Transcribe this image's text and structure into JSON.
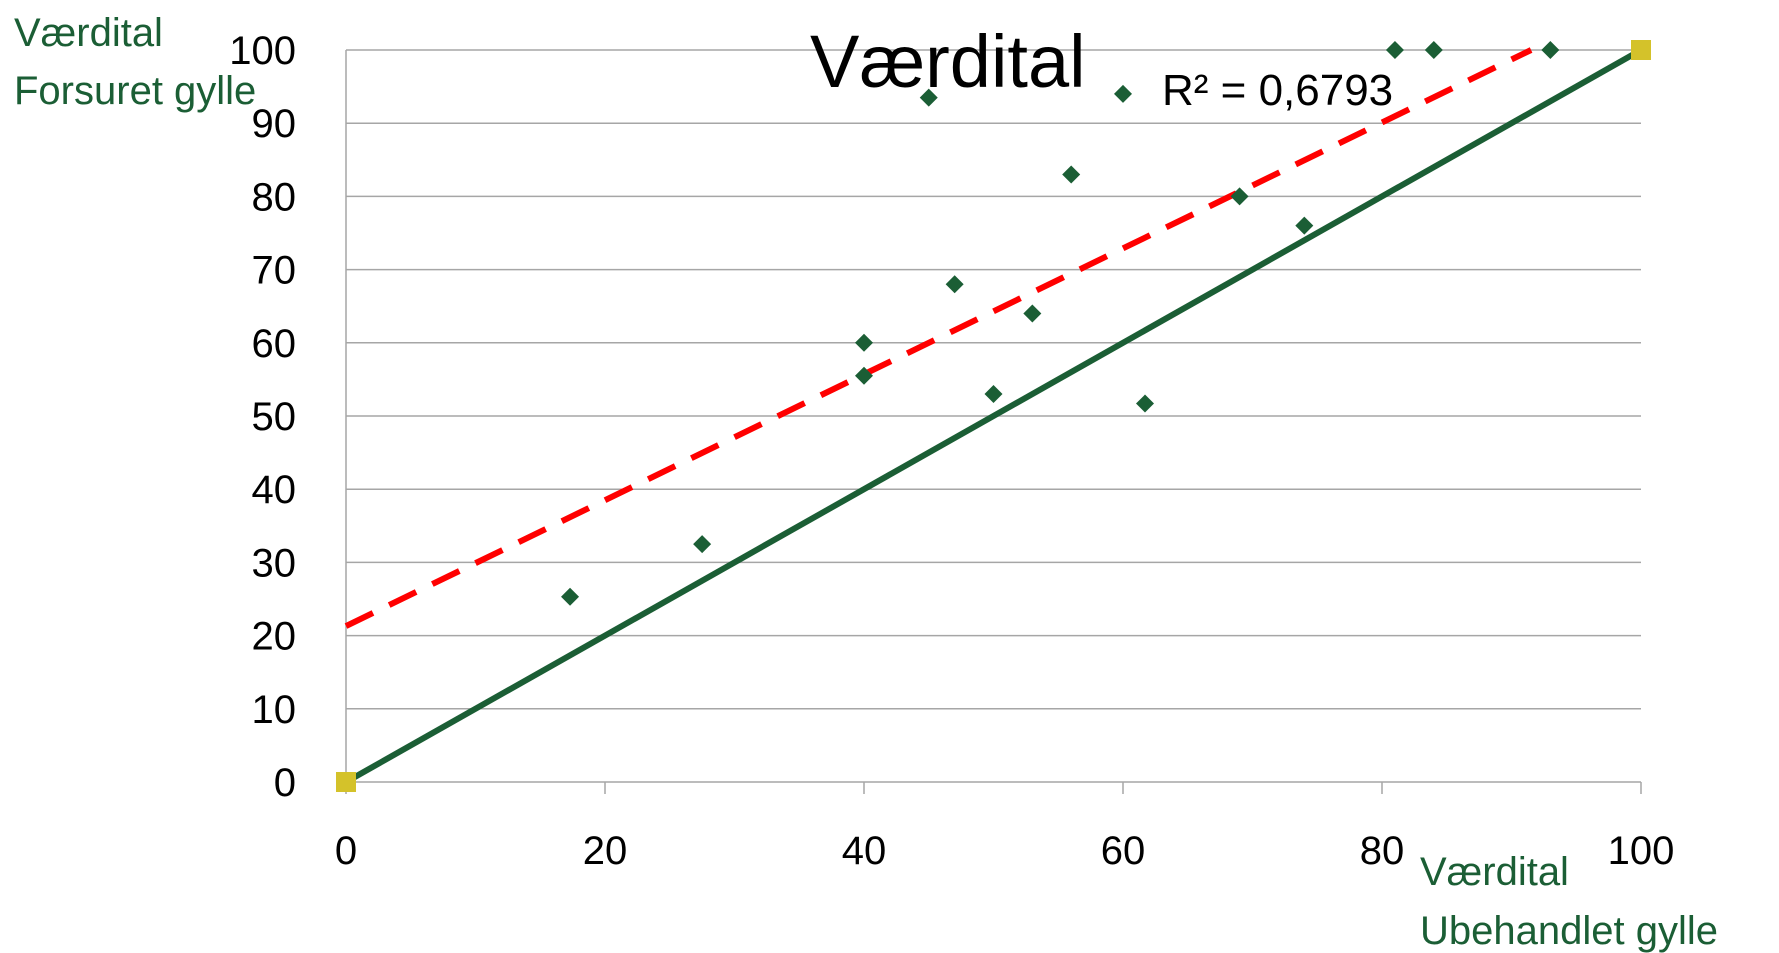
{
  "chart_data": {
    "type": "scatter",
    "title": "Værdital",
    "ylabel_lines": [
      "Værdital",
      "Forsuret gylle"
    ],
    "xlabel_lines": [
      "Værdital",
      "Ubehandlet gylle"
    ],
    "r_squared_label": "R² = 0,6793",
    "xlim": [
      0,
      100
    ],
    "ylim": [
      0,
      100
    ],
    "x_ticks": [
      0,
      20,
      40,
      60,
      80,
      100
    ],
    "y_ticks": [
      0,
      10,
      20,
      30,
      40,
      50,
      60,
      70,
      80,
      90,
      100
    ],
    "grid": true,
    "colors": {
      "points": "#1b5e35",
      "reference_line": "#1b5e35",
      "trendline": "#ff0000",
      "endpoints": "#d4c22a",
      "grid": "#a6a6a6",
      "axis_label": "#1b5e35"
    },
    "series": [
      {
        "marker": "diamond",
        "points": [
          [
            17.3,
            25.3
          ],
          [
            27.5,
            32.5
          ],
          [
            40,
            60
          ],
          [
            40,
            55.5
          ],
          [
            45,
            93.5
          ],
          [
            47,
            68
          ],
          [
            50,
            53
          ],
          [
            53,
            64
          ],
          [
            56,
            83
          ],
          [
            60,
            94
          ],
          [
            61.7,
            51.7
          ],
          [
            69,
            80
          ],
          [
            74,
            76
          ],
          [
            81,
            100
          ],
          [
            84,
            100
          ],
          [
            93,
            100
          ],
          [
            100,
            100
          ]
        ]
      },
      {
        "marker": "square",
        "points": [
          [
            0,
            0
          ],
          [
            100,
            100
          ]
        ]
      }
    ],
    "reference_line": {
      "x": [
        0,
        100
      ],
      "y": [
        0,
        100
      ]
    },
    "trendline": {
      "slope": 0.86,
      "intercept": 21.3,
      "x_range": [
        0,
        100
      ]
    }
  }
}
